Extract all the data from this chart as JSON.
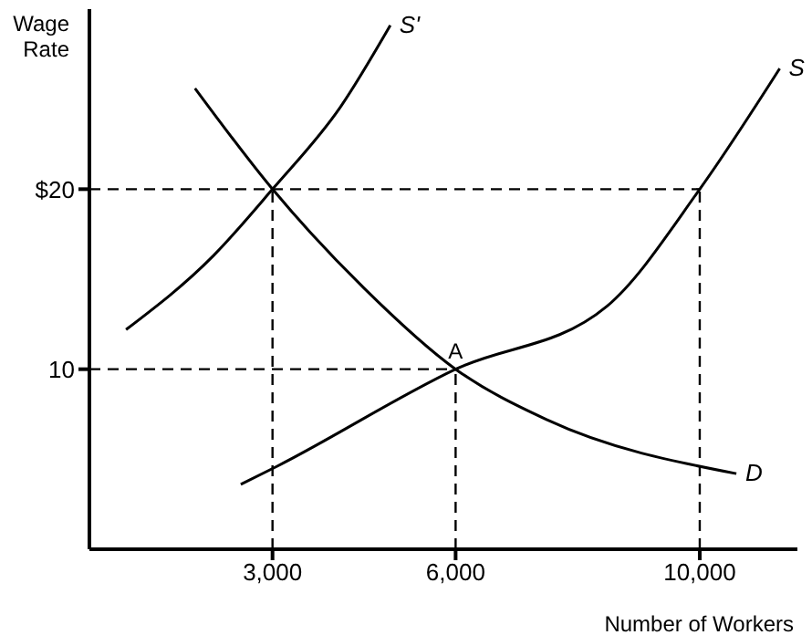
{
  "chart_data": {
    "type": "line",
    "xlabel": "Number of Workers",
    "ylabel": "Wage Rate",
    "xlim": [
      0,
      11600
    ],
    "ylim": [
      0,
      30
    ],
    "xticks": [
      {
        "value": 3000,
        "label": "3,000"
      },
      {
        "value": 6000,
        "label": "6,000"
      },
      {
        "value": 10000,
        "label": "10,000"
      }
    ],
    "yticks": [
      10,
      {
        "value": 20,
        "label": "$20"
      }
    ],
    "grid": false,
    "legend": false,
    "marker": "none",
    "annotations": [
      {
        "text": "A",
        "x": 6000,
        "y": 10
      }
    ],
    "series": [
      {
        "name": "S'",
        "color": "#000000",
        "line_style": "solid",
        "x": [
          600,
          2030,
          3000,
          4120,
          4930
        ],
        "values": [
          12.2,
          16.3,
          20,
          24.6,
          29.1
        ]
      },
      {
        "name": "S",
        "color": "#000000",
        "line_style": "solid",
        "x": [
          2480,
          3070,
          6000,
          8480,
          10000,
          11310
        ],
        "values": [
          3.6,
          4.6,
          10,
          13.5,
          20,
          26.7
        ]
      },
      {
        "name": "D",
        "color": "#000000",
        "line_style": "solid",
        "x": [
          1730,
          3000,
          4500,
          6000,
          7490,
          10600
        ],
        "values": [
          25.6,
          20,
          14.5,
          10,
          7.2,
          4.2
        ]
      },
      {
        "color": "#000000",
        "line_style": "dashed",
        "x": [
          0,
          10000
        ],
        "values": [
          20,
          20
        ]
      },
      {
        "color": "#000000",
        "line_style": "dashed",
        "x": [
          0,
          6000
        ],
        "values": [
          10,
          10
        ]
      },
      {
        "color": "#000000",
        "line_style": "dashed",
        "x": [
          3000,
          3000
        ],
        "values": [
          0,
          20
        ]
      },
      {
        "color": "#000000",
        "line_style": "dashed",
        "x": [
          6000,
          6000
        ],
        "values": [
          0,
          10
        ]
      },
      {
        "color": "#000000",
        "line_style": "dashed",
        "x": [
          10000,
          10000
        ],
        "values": [
          0,
          20
        ]
      }
    ]
  }
}
